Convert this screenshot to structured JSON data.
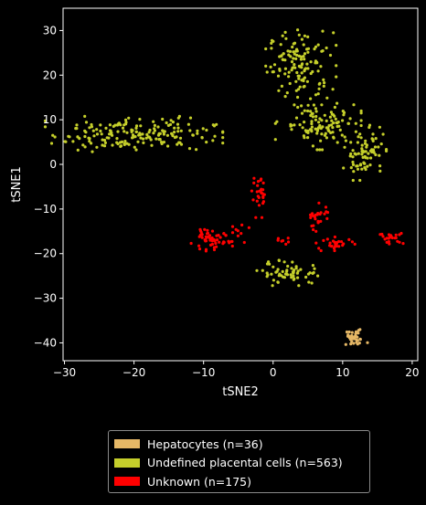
{
  "chart_data": {
    "type": "scatter",
    "title": "",
    "xlabel": "tSNE2",
    "ylabel": "tSNE1",
    "xlim": [
      -30.2,
      20.8
    ],
    "ylim": [
      -44,
      35
    ],
    "xticks": [
      -30,
      -20,
      -10,
      0,
      10,
      20
    ],
    "yticks": [
      -40,
      -30,
      -20,
      -10,
      0,
      10,
      20,
      30
    ],
    "grid": false,
    "legend_position": "bottom-outside",
    "background": "#000000",
    "series": [
      {
        "name": "Hepatocytes (n=36)",
        "color": "#e6b866",
        "clusters": [
          {
            "cx": 11.6,
            "cy": -39.0,
            "sx": 0.9,
            "sy": 0.9,
            "n": 36
          }
        ]
      },
      {
        "name": "Undefined placental cells (n=563)",
        "color": "#c5cf2b",
        "clusters": [
          {
            "cx": 4.0,
            "cy": 22.5,
            "sx": 2.3,
            "sy": 3.6,
            "n": 130
          },
          {
            "cx": -20.0,
            "cy": 6.8,
            "sx": 5.8,
            "sy": 1.8,
            "n": 185
          },
          {
            "cx": 6.5,
            "cy": 9.0,
            "sx": 2.8,
            "sy": 2.6,
            "n": 110
          },
          {
            "cx": 13.2,
            "cy": 2.8,
            "sx": 1.4,
            "sy": 2.9,
            "n": 78
          },
          {
            "cx": 2.5,
            "cy": -24.3,
            "sx": 2.2,
            "sy": 1.3,
            "n": 60
          }
        ]
      },
      {
        "name": "Unknown (n=175)",
        "color": "#ff0000",
        "clusters": [
          {
            "cx": -2.0,
            "cy": -7.5,
            "sx": 0.5,
            "sy": 2.0,
            "n": 28
          },
          {
            "cx": -9.0,
            "cy": -17.0,
            "sx": 1.5,
            "sy": 1.1,
            "n": 55
          },
          {
            "cx": -5.5,
            "cy": -15.5,
            "sx": 1.0,
            "sy": 1.1,
            "n": 10
          },
          {
            "cx": 1.2,
            "cy": -17.0,
            "sx": 0.6,
            "sy": 0.4,
            "n": 7
          },
          {
            "cx": 6.5,
            "cy": -12.0,
            "sx": 0.8,
            "sy": 1.6,
            "n": 25
          },
          {
            "cx": 9.0,
            "cy": -17.8,
            "sx": 1.3,
            "sy": 0.7,
            "n": 28
          },
          {
            "cx": 17.0,
            "cy": -16.5,
            "sx": 0.9,
            "sy": 0.6,
            "n": 22
          }
        ]
      }
    ]
  },
  "legend": {
    "items": [
      {
        "label": "Hepatocytes (n=36)",
        "color": "#e6b866"
      },
      {
        "label": "Undefined placental cells (n=563)",
        "color": "#c5cf2b"
      },
      {
        "label": "Unknown (n=175)",
        "color": "#ff0000"
      }
    ]
  }
}
